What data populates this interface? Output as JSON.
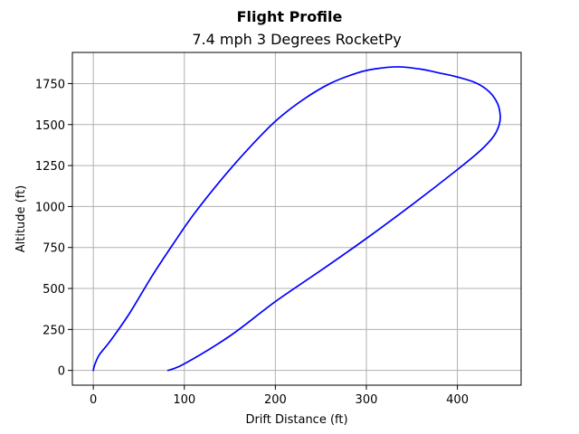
{
  "chart_data": {
    "type": "line",
    "suptitle": "Flight Profile",
    "title": "7.4 mph 3 Degrees RocketPy",
    "xlabel": "Drift Distance (ft)",
    "ylabel": "Altitude (ft)",
    "xlim": [
      -23,
      470
    ],
    "ylim": [
      -90,
      1940
    ],
    "xticks": [
      0,
      100,
      200,
      300,
      400
    ],
    "yticks": [
      0,
      250,
      500,
      750,
      1000,
      1250,
      1500,
      1750
    ],
    "grid": true,
    "legend": "none",
    "series": [
      {
        "color": "#0000ff",
        "x": [
          0,
          1,
          3,
          6,
          10,
          20,
          40,
          65,
          90,
          110,
          140,
          170,
          200,
          230,
          260,
          290,
          310,
          335,
          360,
          380,
          400,
          420,
          435,
          444,
          447,
          446,
          440,
          425,
          400,
          350,
          300,
          250,
          200,
          150,
          100,
          82
        ],
        "y": [
          0,
          25,
          55,
          90,
          120,
          190,
          350,
          580,
          790,
          950,
          1160,
          1350,
          1520,
          1650,
          1750,
          1815,
          1840,
          1852,
          1838,
          1815,
          1790,
          1755,
          1700,
          1630,
          1560,
          1500,
          1430,
          1340,
          1225,
          1010,
          805,
          610,
          420,
          210,
          40,
          0
        ]
      }
    ]
  }
}
